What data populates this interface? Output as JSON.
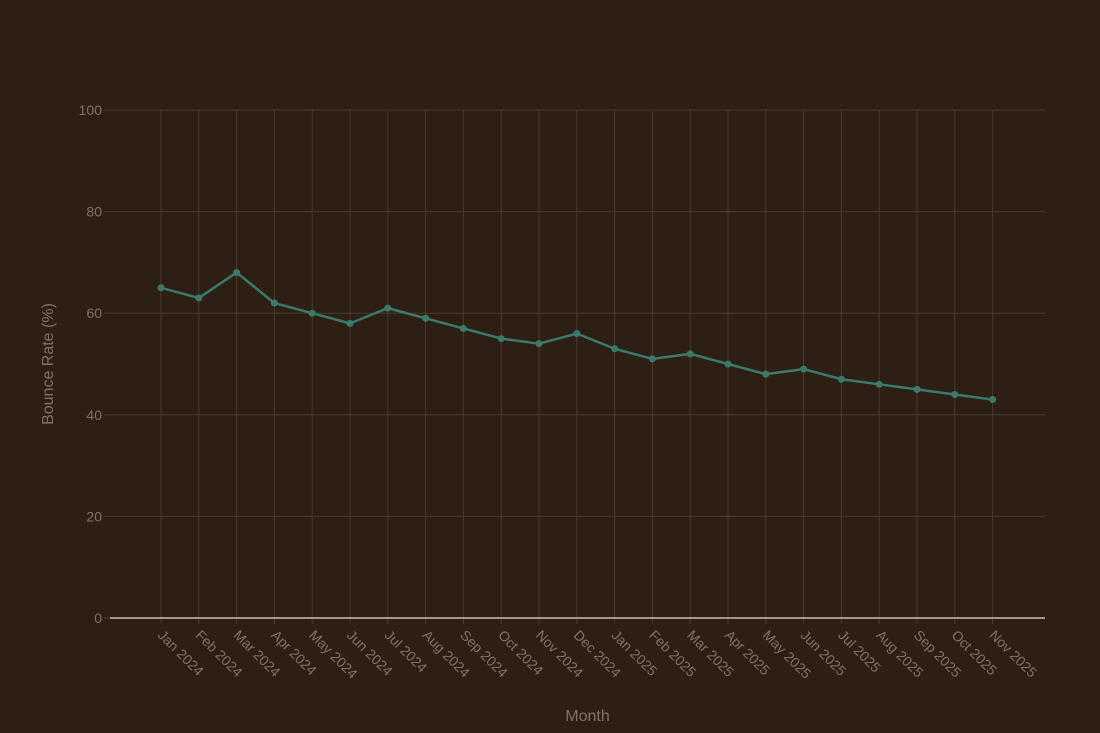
{
  "chart_data": {
    "type": "line",
    "title": "",
    "xlabel": "Month",
    "ylabel": "Bounce Rate (%)",
    "ylim": [
      0,
      100
    ],
    "yticks": [
      0,
      20,
      40,
      60,
      80,
      100
    ],
    "grid": true,
    "categories": [
      "Jan 2024",
      "Feb 2024",
      "Mar 2024",
      "Apr 2024",
      "May 2024",
      "Jun 2024",
      "Jul 2024",
      "Aug 2024",
      "Sep 2024",
      "Oct 2024",
      "Nov 2024",
      "Dec 2024",
      "Jan 2025",
      "Feb 2025",
      "Mar 2025",
      "Apr 2025",
      "May 2025",
      "Jun 2025",
      "Jul 2025",
      "Aug 2025",
      "Sep 2025",
      "Oct 2025",
      "Nov 2025"
    ],
    "series": [
      {
        "values": [
          65,
          63,
          68,
          62,
          60,
          58,
          61,
          59,
          57,
          55,
          54,
          56,
          53,
          51,
          52,
          50,
          48,
          49,
          47,
          46,
          45,
          44,
          43
        ],
        "color": "#3a7a6c"
      }
    ]
  },
  "colors": {
    "background": "#2e1f14",
    "grid": "#4a3a2c",
    "axis": "#e8e0d8",
    "text": "#7e7368"
  }
}
